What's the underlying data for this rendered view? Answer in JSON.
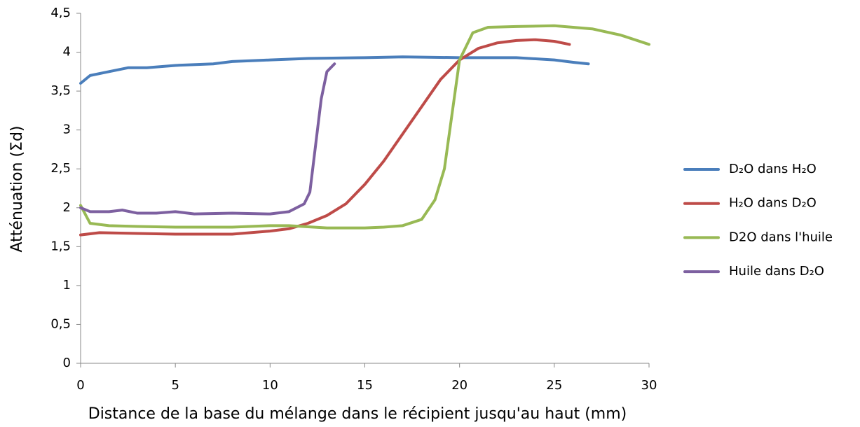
{
  "chart_data": {
    "type": "line",
    "xlabel": "Distance de la base du mélange dans le récipient jusqu'au haut (mm)",
    "ylabel": "Atténuation (Σd)",
    "xlim": [
      0,
      30
    ],
    "xticks": [
      0,
      5,
      10,
      15,
      20,
      25,
      30
    ],
    "ylim": [
      0,
      4.5
    ],
    "yticks": [
      0,
      {
        "value": 0.5,
        "label": "0,5"
      },
      1,
      {
        "value": 1.5,
        "label": "1,5"
      },
      2,
      {
        "value": 2.5,
        "label": "2,5"
      },
      3,
      {
        "value": 3.5,
        "label": "3,5"
      },
      4,
      {
        "value": 4.5,
        "label": "4,5"
      }
    ],
    "legend": "right",
    "series": [
      {
        "name": "D₂O dans H₂O",
        "color": "#4a7ebb",
        "x": [
          0,
          0.5,
          1.5,
          2.5,
          3.5,
          5,
          7,
          8,
          10,
          12,
          15,
          17,
          20,
          23,
          25,
          26,
          26.8
        ],
        "values": [
          3.6,
          3.7,
          3.75,
          3.8,
          3.8,
          3.83,
          3.85,
          3.88,
          3.9,
          3.92,
          3.93,
          3.94,
          3.93,
          3.93,
          3.9,
          3.87,
          3.85
        ]
      },
      {
        "name": "H₂O dans D₂O",
        "color": "#be4b48",
        "x": [
          0,
          1,
          3,
          5,
          8,
          10,
          11,
          12,
          13,
          14,
          15,
          16,
          17,
          18,
          19,
          20,
          21,
          22,
          23,
          24,
          25,
          25.8
        ],
        "values": [
          1.65,
          1.68,
          1.67,
          1.66,
          1.66,
          1.7,
          1.73,
          1.8,
          1.9,
          2.05,
          2.3,
          2.6,
          2.95,
          3.3,
          3.65,
          3.9,
          4.05,
          4.12,
          4.15,
          4.16,
          4.14,
          4.1
        ]
      },
      {
        "name": "D2O dans l'huile",
        "color": "#98b954",
        "x": [
          0,
          0.5,
          1.5,
          3,
          5,
          8,
          10,
          11,
          13,
          15,
          16,
          17,
          18,
          18.7,
          19.2,
          19.6,
          20,
          20.7,
          21.5,
          23,
          25,
          27,
          28.5,
          30
        ],
        "values": [
          2.03,
          1.8,
          1.77,
          1.76,
          1.75,
          1.75,
          1.77,
          1.77,
          1.74,
          1.74,
          1.75,
          1.77,
          1.85,
          2.1,
          2.5,
          3.2,
          3.9,
          4.25,
          4.32,
          4.33,
          4.34,
          4.3,
          4.22,
          4.1
        ]
      },
      {
        "name": "Huile dans D₂O",
        "color": "#7d60a0",
        "x": [
          0,
          0.5,
          1.5,
          2.2,
          3,
          4,
          5,
          6,
          8,
          10,
          11,
          11.8,
          12.1,
          12.4,
          12.7,
          13,
          13.4
        ],
        "values": [
          2.0,
          1.95,
          1.95,
          1.97,
          1.93,
          1.93,
          1.95,
          1.92,
          1.93,
          1.92,
          1.95,
          2.05,
          2.2,
          2.8,
          3.4,
          3.75,
          3.85
        ]
      }
    ]
  }
}
